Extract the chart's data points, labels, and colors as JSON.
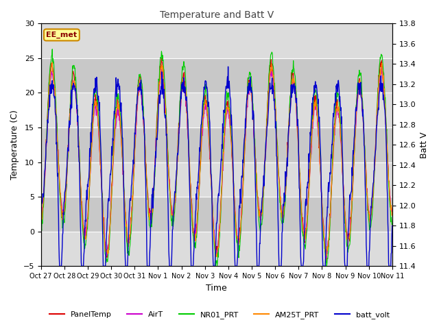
{
  "title": "Temperature and Batt V",
  "xlabel": "Time",
  "ylabel_left": "Temperature (C)",
  "ylabel_right": "Batt V",
  "ylim_left": [
    -5,
    30
  ],
  "ylim_right": [
    11.4,
    13.8
  ],
  "yticks_left": [
    -5,
    0,
    5,
    10,
    15,
    20,
    25,
    30
  ],
  "yticks_right": [
    11.4,
    11.6,
    11.8,
    12.0,
    12.2,
    12.4,
    12.6,
    12.8,
    13.0,
    13.2,
    13.4,
    13.6,
    13.8
  ],
  "xtick_labels": [
    "Oct 27",
    "Oct 28",
    "Oct 29",
    "Oct 30",
    "Oct 31",
    "Nov 1",
    "Nov 2",
    "Nov 3",
    "Nov 4",
    "Nov 5",
    "Nov 6",
    "Nov 7",
    "Nov 8",
    "Nov 9",
    "Nov 10",
    "Nov 11"
  ],
  "annotation_text": "EE_met",
  "annotation_fg": "#8b0000",
  "annotation_bg": "#ffff99",
  "annotation_edge": "#cc8800",
  "bg_light": "#dcdcdc",
  "bg_dark": "#c8c8c8",
  "grid_color": "#ffffff",
  "colors": {
    "PanelTemp": "#dd0000",
    "AirT": "#cc00cc",
    "NR01_PRT": "#00cc00",
    "AM25T_PRT": "#ff8800",
    "batt_volt": "#0000cc"
  },
  "n_points": 960
}
